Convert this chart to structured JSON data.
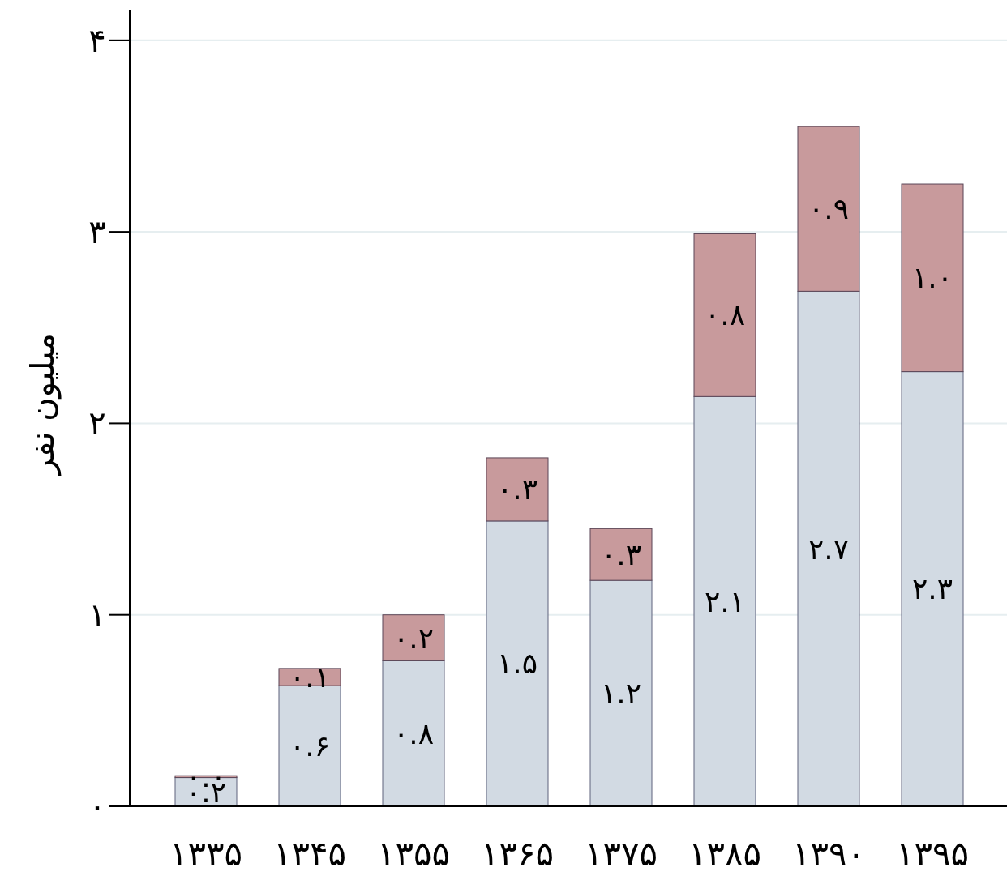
{
  "chart_data": {
    "type": "bar",
    "stacked": true,
    "ylabel": "میلیون نفر",
    "categories": [
      "۱۳۳۵",
      "۱۳۴۵",
      "۱۳۵۵",
      "۱۳۶۵",
      "۱۳۷۵",
      "۱۳۸۵",
      "۱۳۹۰",
      "۱۳۹۵"
    ],
    "series": [
      {
        "color": "#d2dae3",
        "values": [
          0.15,
          0.63,
          0.76,
          1.49,
          1.18,
          2.14,
          2.69,
          2.27
        ],
        "value_labels": [
          "۰.۲",
          "۰.۶",
          "۰.۸",
          "۱.۵",
          "۱.۲",
          "۲.۱",
          "۲.۷",
          "۲.۳"
        ]
      },
      {
        "color": "#c89a9c",
        "values": [
          0.01,
          0.09,
          0.24,
          0.33,
          0.27,
          0.85,
          0.86,
          0.98
        ],
        "value_labels": [
          "۰.۰",
          "۰.۱",
          "۰.۲",
          "۰.۳",
          "۰.۳",
          "۰.۸",
          "۰.۹",
          "۱.۰"
        ]
      }
    ],
    "ylim": [
      0,
      4.16
    ],
    "yticks": [
      {
        "value": 0,
        "label": "۰"
      },
      {
        "value": 1,
        "label": "۱"
      },
      {
        "value": 2,
        "label": "۲"
      },
      {
        "value": 3,
        "label": "۳"
      },
      {
        "value": 4,
        "label": "۴"
      }
    ],
    "grid": "y"
  }
}
